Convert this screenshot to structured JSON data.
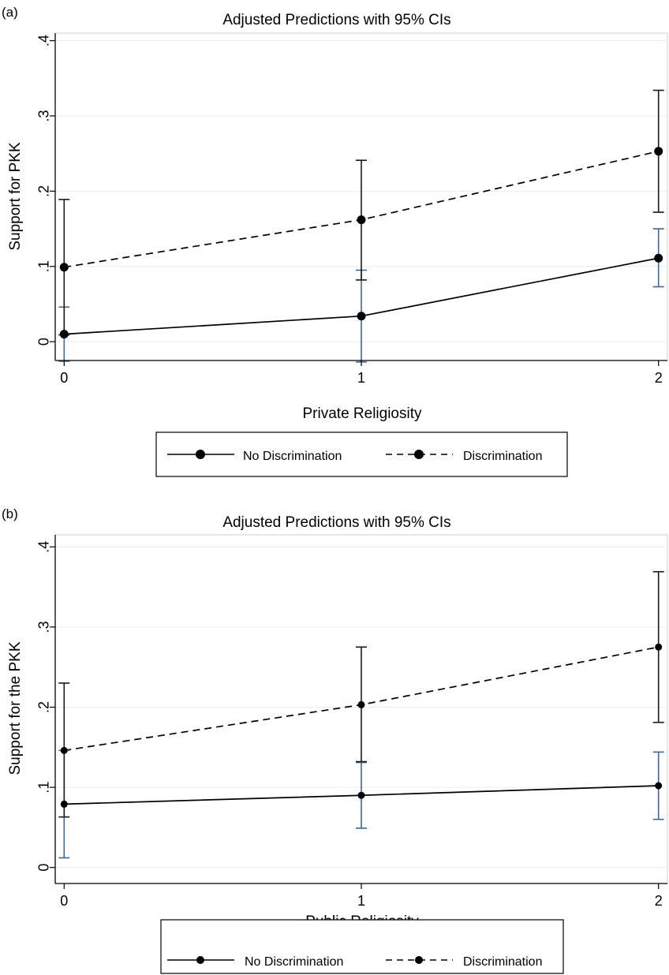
{
  "chart_data": [
    {
      "type": "line",
      "panel_label": "(a)",
      "title": "Adjusted Predictions with 95% CIs",
      "xlabel": "Private Religiosity",
      "ylabel": "Support for PKK",
      "x": [
        0,
        1,
        2
      ],
      "x_tick_labels": [
        "0",
        "1",
        "2"
      ],
      "y_ticks": [
        0,
        0.1,
        0.2,
        0.3,
        0.4
      ],
      "y_tick_labels": [
        "0",
        ".1",
        ".2",
        ".3",
        ".4"
      ],
      "xlim": [
        -0.03,
        2.03
      ],
      "ylim": [
        -0.025,
        0.41
      ],
      "grid": true,
      "legend_position": "bottom",
      "series": [
        {
          "name": "No Discrimination",
          "values": [
            0.01,
            0.034,
            0.111
          ],
          "ci_low": [
            -0.026,
            -0.027,
            0.073
          ],
          "ci_high": [
            0.046,
            0.095,
            0.15
          ],
          "line_style": "solid",
          "ci_color": "#3d6a96"
        },
        {
          "name": "Discrimination",
          "values": [
            0.099,
            0.162,
            0.253
          ],
          "ci_low": [
            0.009,
            0.082,
            0.172
          ],
          "ci_high": [
            0.189,
            0.241,
            0.334
          ],
          "line_style": "dashed",
          "ci_color": "#1a1a1a"
        }
      ]
    },
    {
      "type": "line",
      "panel_label": "(b)",
      "title": "Adjusted Predictions with 95% CIs",
      "xlabel": "Public Religiosity",
      "ylabel": "Support for the PKK",
      "x": [
        0,
        1,
        2
      ],
      "x_tick_labels": [
        "0",
        "1",
        "2"
      ],
      "y_ticks": [
        0,
        0.1,
        0.2,
        0.3,
        0.4
      ],
      "y_tick_labels": [
        "0",
        ".1",
        ".2",
        ".3",
        ".4"
      ],
      "xlim": [
        -0.03,
        2.03
      ],
      "ylim": [
        -0.02,
        0.415
      ],
      "grid": true,
      "legend_position": "bottom",
      "series": [
        {
          "name": "No Discrimination",
          "values": [
            0.079,
            0.09,
            0.102
          ],
          "ci_low": [
            0.012,
            0.049,
            0.06
          ],
          "ci_high": [
            0.146,
            0.131,
            0.144
          ],
          "line_style": "solid",
          "ci_color": "#3d6a96"
        },
        {
          "name": "Discrimination",
          "values": [
            0.146,
            0.203,
            0.275
          ],
          "ci_low": [
            0.063,
            0.132,
            0.181
          ],
          "ci_high": [
            0.23,
            0.275,
            0.369
          ],
          "line_style": "dashed",
          "ci_color": "#1a1a1a"
        }
      ]
    }
  ]
}
